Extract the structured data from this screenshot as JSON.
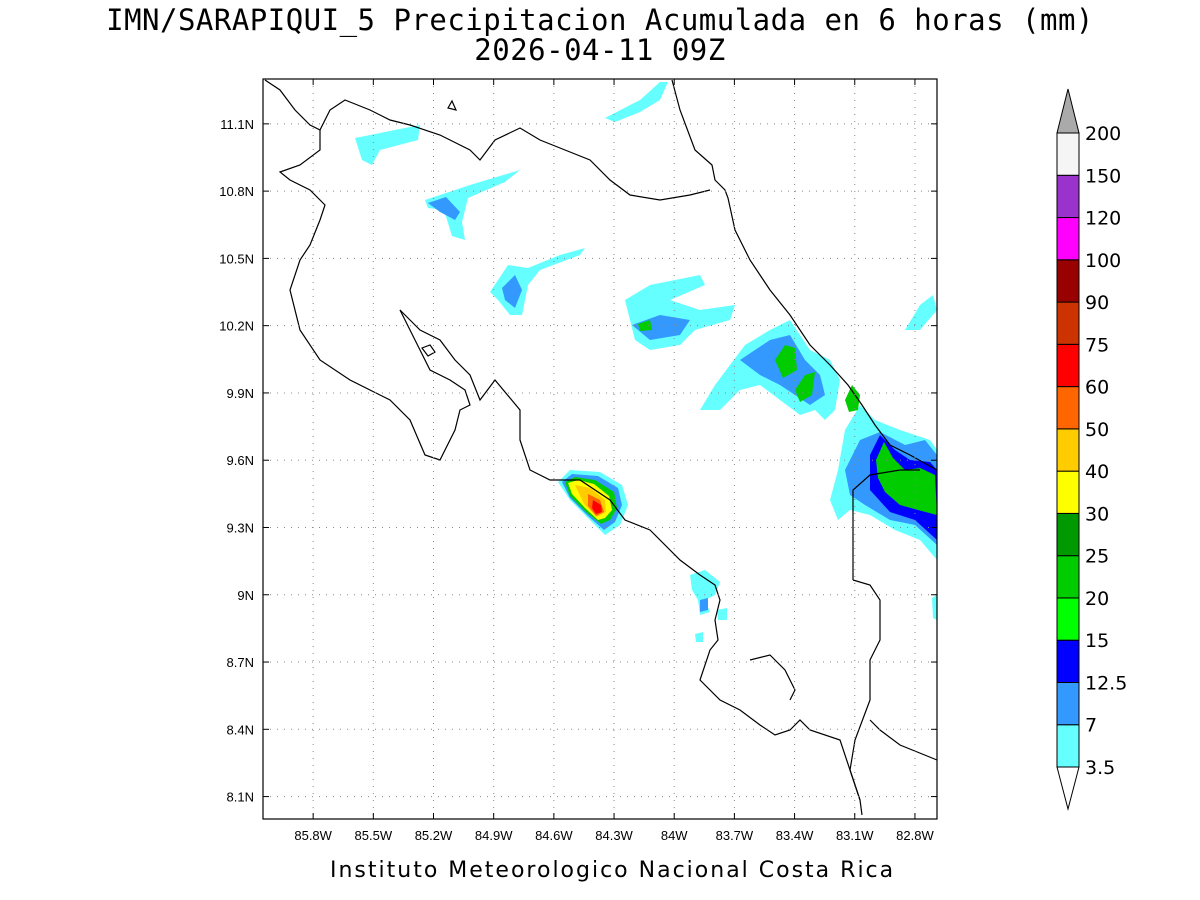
{
  "title_line1": "IMN/SARAPIQUI_5 Precipitacion Acumulada en 6 horas (mm)",
  "title_line2": "2026-04-11 09Z",
  "footer": "Instituto Meteorologico Nacional Costa Rica",
  "map": {
    "lon_range": [
      -86.05,
      -82.69
    ],
    "lat_range": [
      8.0,
      11.3
    ],
    "lon_ticks": [
      {
        "value": -85.8,
        "label": "85.8W"
      },
      {
        "value": -85.5,
        "label": "85.5W"
      },
      {
        "value": -85.2,
        "label": "85.2W"
      },
      {
        "value": -84.9,
        "label": "84.9W"
      },
      {
        "value": -84.6,
        "label": "84.6W"
      },
      {
        "value": -84.3,
        "label": "84.3W"
      },
      {
        "value": -84.0,
        "label": "84W"
      },
      {
        "value": -83.7,
        "label": "83.7W"
      },
      {
        "value": -83.4,
        "label": "83.4W"
      },
      {
        "value": -83.1,
        "label": "83.1W"
      },
      {
        "value": -82.8,
        "label": "82.8W"
      }
    ],
    "lat_ticks": [
      {
        "value": 11.1,
        "label": "11.1N"
      },
      {
        "value": 10.8,
        "label": "10.8N"
      },
      {
        "value": 10.5,
        "label": "10.5N"
      },
      {
        "value": 10.2,
        "label": "10.2N"
      },
      {
        "value": 9.9,
        "label": "9.9N"
      },
      {
        "value": 9.6,
        "label": "9.6N"
      },
      {
        "value": 9.3,
        "label": "9.3N"
      },
      {
        "value": 9.0,
        "label": "9N"
      },
      {
        "value": 8.7,
        "label": "8.7N"
      },
      {
        "value": 8.4,
        "label": "8.4N"
      },
      {
        "value": 8.1,
        "label": "8.1N"
      }
    ],
    "grid": true
  },
  "colorbar": {
    "levels": [
      {
        "label": "3.5",
        "color": "#66ffff"
      },
      {
        "label": "7",
        "color": "#3399ff"
      },
      {
        "label": "12.5",
        "color": "#0000ff"
      },
      {
        "label": "15",
        "color": "#00ff00"
      },
      {
        "label": "20",
        "color": "#00cc00"
      },
      {
        "label": "25",
        "color": "#009900"
      },
      {
        "label": "30",
        "color": "#ffff00"
      },
      {
        "label": "40",
        "color": "#ffcc00"
      },
      {
        "label": "50",
        "color": "#ff6600"
      },
      {
        "label": "60",
        "color": "#ff0000"
      },
      {
        "label": "75",
        "color": "#cc3300"
      },
      {
        "label": "90",
        "color": "#990000"
      },
      {
        "label": "100",
        "color": "#ff00ff"
      },
      {
        "label": "120",
        "color": "#9933cc"
      },
      {
        "label": "150",
        "color": "#f5f5f5"
      },
      {
        "label": "200",
        "color": "#aaaaaa"
      }
    ]
  }
}
